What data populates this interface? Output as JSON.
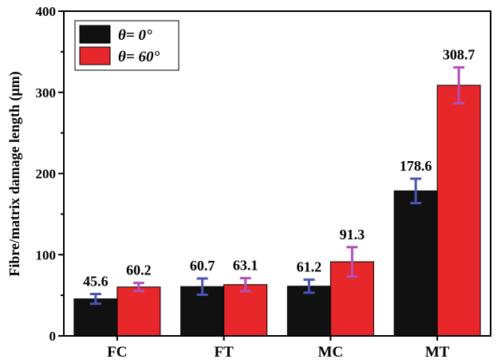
{
  "chart_data": {
    "type": "bar",
    "ylabel": "Fibre/matrix damage length (μm)",
    "xlabel": "",
    "title": "",
    "categories": [
      "FC",
      "FT",
      "MC",
      "MT"
    ],
    "ylim": [
      0,
      400
    ],
    "yticks": [
      "0",
      "100",
      "200",
      "300",
      "400"
    ],
    "legend_position": "top-left",
    "series": [
      {
        "name": "θ= 0°",
        "color": "#111111",
        "error_color": "#4a54b8",
        "values": [
          45.6,
          60.7,
          61.2,
          178.6
        ],
        "labels": [
          "45.6",
          "60.7",
          "61.2",
          "178.6"
        ],
        "errors": [
          6,
          10,
          8,
          15
        ]
      },
      {
        "name": "θ= 60°",
        "color": "#e8272b",
        "error_color": "#b34fb8",
        "values": [
          60.2,
          63.1,
          91.3,
          308.7
        ],
        "labels": [
          "60.2",
          "63.1",
          "91.3",
          "308.7"
        ],
        "errors": [
          5,
          8,
          18,
          22
        ]
      }
    ]
  }
}
